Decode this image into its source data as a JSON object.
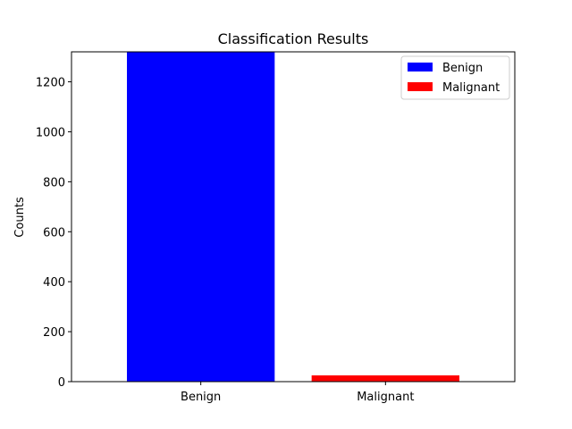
{
  "chart_data": {
    "type": "bar",
    "title": "Classification Results",
    "xlabel": "",
    "ylabel": "Counts",
    "categories": [
      "Benign",
      "Malignant"
    ],
    "values": [
      1330,
      25
    ],
    "colors": [
      "#0000ff",
      "#ff0000"
    ],
    "ylim": [
      0,
      1320
    ],
    "yticks": [
      0,
      200,
      400,
      600,
      800,
      1000,
      1200
    ],
    "grid": false,
    "legend": {
      "placement": "top-right",
      "entries": [
        {
          "label": "Benign",
          "color": "#0000ff"
        },
        {
          "label": "Malignant",
          "color": "#ff0000"
        }
      ]
    }
  }
}
